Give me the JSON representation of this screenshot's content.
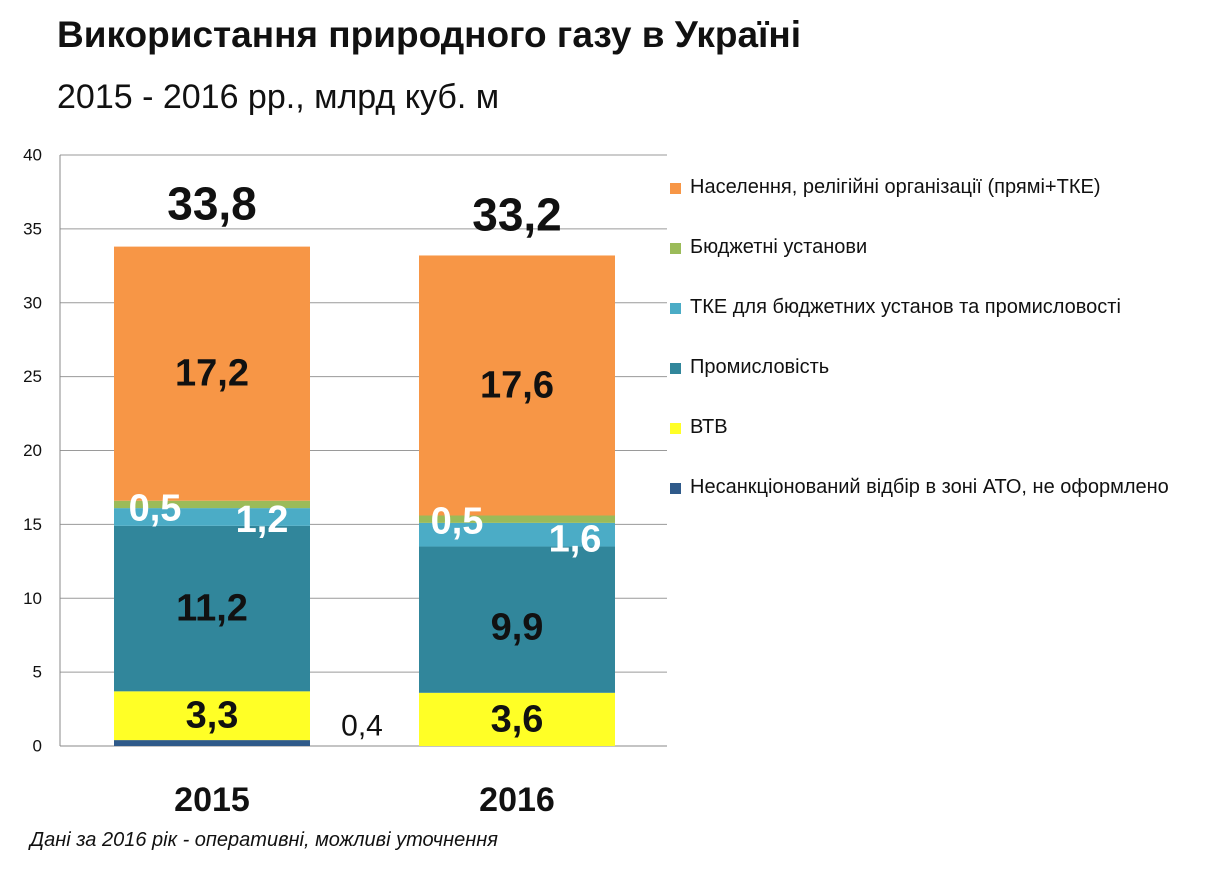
{
  "title": "Використання природного газу в Україні",
  "subtitle": "2015 - 2016 рр., млрд куб. м",
  "note": "Дані за 2016 рік - оперативні, можливі уточнення",
  "chart_data": {
    "type": "bar",
    "stacked": true,
    "categories": [
      "2015",
      "2016"
    ],
    "totals": [
      33.8,
      33.2
    ],
    "total_labels": [
      "33,8",
      "33,2"
    ],
    "ylim": [
      0,
      40
    ],
    "yticks": [
      0,
      5,
      10,
      15,
      20,
      25,
      30,
      35,
      40
    ],
    "grid": true,
    "legend_position": "right",
    "series": [
      {
        "name": "Несанкціонований відбір в зоні АТО, не оформлено",
        "color": "#2f5a8a",
        "values": [
          0.4,
          0
        ],
        "labels": [
          "0,4",
          ""
        ]
      },
      {
        "name": "ВТВ",
        "color": "#ffff26",
        "values": [
          3.3,
          3.6
        ],
        "labels": [
          "3,3",
          "3,6"
        ]
      },
      {
        "name": "Промисловість",
        "color": "#31869b",
        "values": [
          11.2,
          9.9
        ],
        "labels": [
          "11,2",
          "9,9"
        ]
      },
      {
        "name": "ТКЕ для бюджетних установ та промисловості",
        "color": "#4bacc6",
        "values": [
          1.2,
          1.6
        ],
        "labels": [
          "1,2",
          "1,6"
        ]
      },
      {
        "name": "Бюджетні установи",
        "color": "#9bbb59",
        "values": [
          0.5,
          0.5
        ],
        "labels": [
          "0,5",
          "0,5"
        ]
      },
      {
        "name": "Населення, релігійні організації (прямі+ТКЕ)",
        "color": "#f79646",
        "values": [
          17.2,
          17.6
        ],
        "labels": [
          "17,2",
          "17,6"
        ]
      }
    ]
  }
}
